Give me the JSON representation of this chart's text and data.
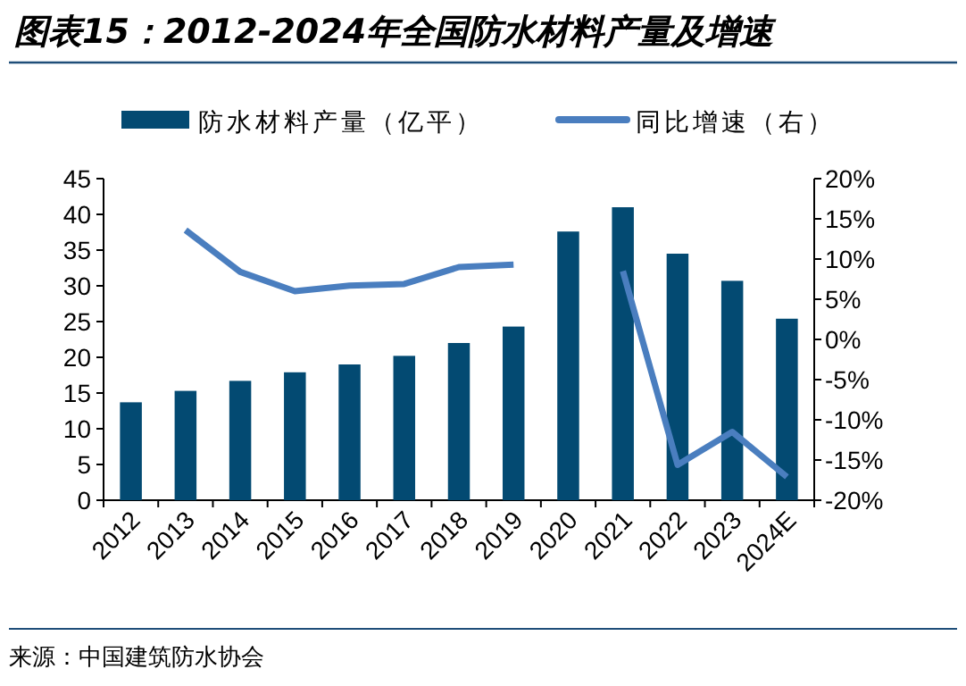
{
  "chart_data": {
    "type": "bar",
    "title": "图表15：2012-2024年全国防水材料产量及增速",
    "annotations": [
      "来源：中国建筑防水协会"
    ],
    "categories": [
      "2012",
      "2013",
      "2014",
      "2015",
      "2016",
      "2017",
      "2018",
      "2019",
      "2020",
      "2021",
      "2022",
      "2023",
      "2024E"
    ],
    "series": [
      {
        "name": "防水材料产量（亿平）",
        "color": "#034a72",
        "values": [
          13.7,
          15.3,
          16.7,
          17.9,
          19.0,
          20.2,
          22.0,
          24.3,
          37.6,
          41.0,
          34.5,
          30.7,
          25.4
        ]
      },
      {
        "name": "同比增速（右）",
        "type": "line",
        "axis": "y2",
        "color": "#4a7ebf",
        "values": [
          null,
          13.6,
          8.4,
          6.0,
          6.7,
          6.9,
          9.0,
          9.3,
          null,
          8.5,
          -15.6,
          -11.5,
          -17.1
        ]
      }
    ],
    "ylim": [
      0,
      45
    ],
    "yticks": [
      0,
      5,
      10,
      15,
      20,
      25,
      30,
      35,
      40,
      45
    ],
    "y2lim": [
      -20,
      20
    ],
    "y2ticks": [
      {
        "value": -20,
        "label": "-20%"
      },
      {
        "value": -15,
        "label": "-15%"
      },
      {
        "value": -10,
        "label": "-10%"
      },
      {
        "value": -5,
        "label": "-5%"
      },
      {
        "value": 0,
        "label": "0%"
      },
      {
        "value": 5,
        "label": "5%"
      },
      {
        "value": 10,
        "label": "10%"
      },
      {
        "value": 15,
        "label": "15%"
      },
      {
        "value": 20,
        "label": "20%"
      }
    ],
    "legend": "top",
    "grid": false
  }
}
